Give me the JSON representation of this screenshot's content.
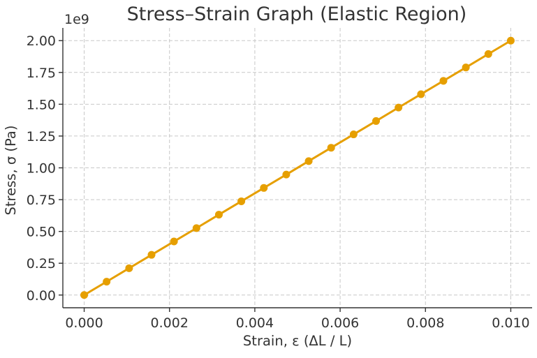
{
  "chart_data": {
    "type": "line",
    "title": "Stress–Strain Graph (Elastic Region)",
    "xlabel": "Strain, ε (ΔL / L)",
    "ylabel": "Stress, σ (Pa)",
    "y_offset_label": "1e9",
    "xlim": [
      -0.0005,
      0.0105
    ],
    "ylim": [
      -0.1,
      2.1
    ],
    "x_ticks": [
      0.0,
      0.002,
      0.004,
      0.006,
      0.008,
      0.01
    ],
    "x_tick_labels": [
      "0.000",
      "0.002",
      "0.004",
      "0.006",
      "0.008",
      "0.010"
    ],
    "y_ticks": [
      0.0,
      0.25,
      0.5,
      0.75,
      1.0,
      1.25,
      1.5,
      1.75,
      2.0
    ],
    "y_tick_labels": [
      "0.00",
      "0.25",
      "0.50",
      "0.75",
      "1.00",
      "1.25",
      "1.50",
      "1.75",
      "2.00"
    ],
    "grid": true,
    "color": "#E69F00",
    "series": [
      {
        "x": [
          0.0,
          0.000526,
          0.001053,
          0.001579,
          0.002105,
          0.002632,
          0.003158,
          0.003684,
          0.004211,
          0.004737,
          0.005263,
          0.005789,
          0.006316,
          0.006842,
          0.007368,
          0.007895,
          0.008421,
          0.008947,
          0.009474,
          0.01
        ],
        "y": [
          0.0,
          0.105,
          0.211,
          0.316,
          0.421,
          0.526,
          0.632,
          0.737,
          0.842,
          0.947,
          1.053,
          1.158,
          1.263,
          1.368,
          1.474,
          1.579,
          1.684,
          1.789,
          1.895,
          2.0
        ]
      }
    ]
  }
}
